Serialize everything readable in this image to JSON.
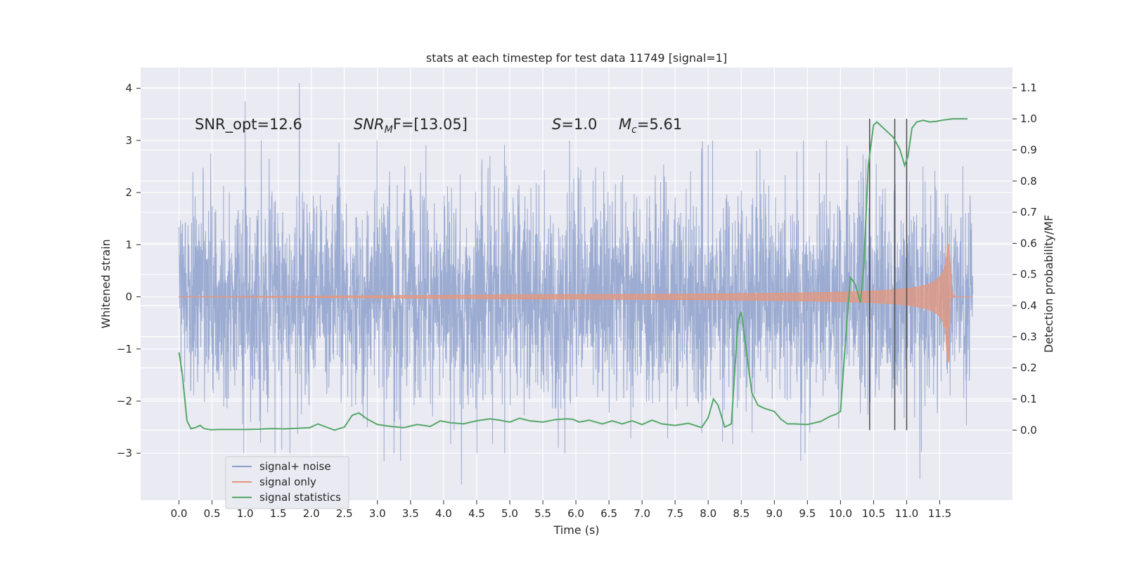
{
  "colors": {
    "background": "#eaeaf2",
    "grid": "#ffffff",
    "noise": "#8da0cb",
    "signal": "#e5977c",
    "stats": "#55a868",
    "vlines": "#4c4c4c",
    "text": "#262626"
  },
  "chart_data": {
    "type": "line",
    "title": "stats at each timestep for test data 11749 [signal=1]",
    "xlabel": "Time (s)",
    "ylabel_left": "Whitened strain",
    "ylabel_right": "Detection probability/MF",
    "xlim": [
      -0.58,
      12.6
    ],
    "ylim_left": [
      -3.9,
      4.4
    ],
    "ylim_right": [
      -0.225,
      1.165
    ],
    "x_ticks": [
      0.0,
      0.5,
      1.0,
      1.5,
      2.0,
      2.5,
      3.0,
      3.5,
      4.0,
      4.5,
      5.0,
      5.5,
      6.0,
      6.5,
      7.0,
      7.5,
      8.0,
      8.5,
      9.0,
      9.5,
      10.0,
      10.5,
      11.0,
      11.5
    ],
    "x_tick_labels": [
      "0.0",
      "0.5",
      "1.0",
      "1.5",
      "2.0",
      "2.5",
      "3.0",
      "3.5",
      "4.0",
      "4.5",
      "5.0",
      "5.5",
      "6.0",
      "6.5",
      "7.0",
      "7.5",
      "8.0",
      "8.5",
      "9.0",
      "9.5",
      "10.0",
      "10.5",
      "11.0",
      "11.5"
    ],
    "y_left_ticks": [
      -3,
      -2,
      -1,
      0,
      1,
      2,
      3,
      4
    ],
    "y_left_tick_labels": [
      "−3",
      "−2",
      "−1",
      "0",
      "1",
      "2",
      "3",
      "4"
    ],
    "y_right_ticks": [
      0.0,
      0.1,
      0.2,
      0.3,
      0.4,
      0.5,
      0.6,
      0.7,
      0.8,
      0.9,
      1.0,
      1.1
    ],
    "y_right_tick_labels": [
      "0.0",
      "0.1",
      "0.2",
      "0.3",
      "0.4",
      "0.5",
      "0.6",
      "0.7",
      "0.8",
      "0.9",
      "1.0",
      "1.1"
    ],
    "noise_range": [
      0.0,
      12.0
    ],
    "noise_typical_amplitude": 1.45,
    "noise_peaks": [
      {
        "t": 1.0,
        "v": 3.75
      },
      {
        "t": 1.82,
        "v": 4.1
      },
      {
        "t": 0.48,
        "v": 2.75
      },
      {
        "t": 3.35,
        "v": 3.05
      },
      {
        "t": 2.42,
        "v": 2.95
      },
      {
        "t": 7.9,
        "v": 2.85
      },
      {
        "t": 10.1,
        "v": 2.9
      },
      {
        "t": 4.27,
        "v": -3.6
      },
      {
        "t": 11.2,
        "v": -3.5
      },
      {
        "t": 3.1,
        "v": -3.15
      },
      {
        "t": 3.35,
        "v": -3.15
      },
      {
        "t": 9.4,
        "v": -3.15
      }
    ],
    "signal_only": {
      "start": 5.0,
      "peak_t": 11.65,
      "peak_amplitude": 1.0,
      "end": 12.0
    },
    "series": [
      {
        "name": "signal statistics",
        "axis": "right",
        "x": [
          0.0,
          0.05,
          0.12,
          0.18,
          0.25,
          0.32,
          0.38,
          0.48,
          0.6,
          0.8,
          1.0,
          1.2,
          1.4,
          1.6,
          1.8,
          1.98,
          2.1,
          2.2,
          2.35,
          2.5,
          2.62,
          2.72,
          2.85,
          3.0,
          3.2,
          3.4,
          3.6,
          3.8,
          3.95,
          4.1,
          4.3,
          4.5,
          4.7,
          4.85,
          5.0,
          5.15,
          5.3,
          5.5,
          5.7,
          5.85,
          5.95,
          6.05,
          6.2,
          6.4,
          6.55,
          6.7,
          6.85,
          7.0,
          7.15,
          7.3,
          7.5,
          7.7,
          7.9,
          8.0,
          8.08,
          8.15,
          8.25,
          8.35,
          8.45,
          8.5,
          8.58,
          8.66,
          8.75,
          8.85,
          9.0,
          9.1,
          9.2,
          9.3,
          9.5,
          9.7,
          9.85,
          9.92,
          10.0,
          10.1,
          10.15,
          10.22,
          10.3,
          10.35,
          10.42,
          10.5,
          10.55,
          10.6,
          10.7,
          10.8,
          10.9,
          10.97,
          11.02,
          11.08,
          11.15,
          11.25,
          11.35,
          11.45,
          11.55,
          11.7,
          11.85,
          11.92
        ],
        "y": [
          0.25,
          0.18,
          0.03,
          0.005,
          0.008,
          0.015,
          0.005,
          0.001,
          0.002,
          0.002,
          0.002,
          0.003,
          0.005,
          0.004,
          0.006,
          0.008,
          0.02,
          0.012,
          0.0,
          0.01,
          0.048,
          0.055,
          0.035,
          0.018,
          0.012,
          0.008,
          0.018,
          0.012,
          0.03,
          0.024,
          0.02,
          0.03,
          0.036,
          0.032,
          0.026,
          0.038,
          0.03,
          0.026,
          0.034,
          0.036,
          0.035,
          0.026,
          0.032,
          0.02,
          0.03,
          0.02,
          0.03,
          0.018,
          0.032,
          0.02,
          0.015,
          0.022,
          0.008,
          0.04,
          0.1,
          0.08,
          0.01,
          0.02,
          0.35,
          0.38,
          0.25,
          0.12,
          0.08,
          0.07,
          0.06,
          0.035,
          0.02,
          0.02,
          0.018,
          0.028,
          0.045,
          0.05,
          0.06,
          0.36,
          0.49,
          0.47,
          0.41,
          0.52,
          0.85,
          0.98,
          0.99,
          0.98,
          0.96,
          0.94,
          0.9,
          0.85,
          0.88,
          0.97,
          0.99,
          0.995,
          0.99,
          0.992,
          0.996,
          1.0,
          1.0,
          1.0
        ]
      }
    ],
    "vertical_lines": [
      10.44,
      10.82,
      11.0
    ],
    "vertical_line_range_right": [
      0.0,
      1.0
    ],
    "annotations": {
      "snr_opt": "SNR_opt=12.6",
      "snr_mf_italic": "SNR",
      "snr_mf_sub": "M",
      "snr_mf_tail": "F=[13.05]",
      "s_italic": "S",
      "s_tail": "=1.0",
      "mc_italic": "M",
      "mc_sub": "c",
      "mc_tail": "=5.61"
    },
    "legend": {
      "placement": "lower-left",
      "entries": [
        "signal+ noise",
        "signal only",
        "signal statistics"
      ]
    }
  }
}
